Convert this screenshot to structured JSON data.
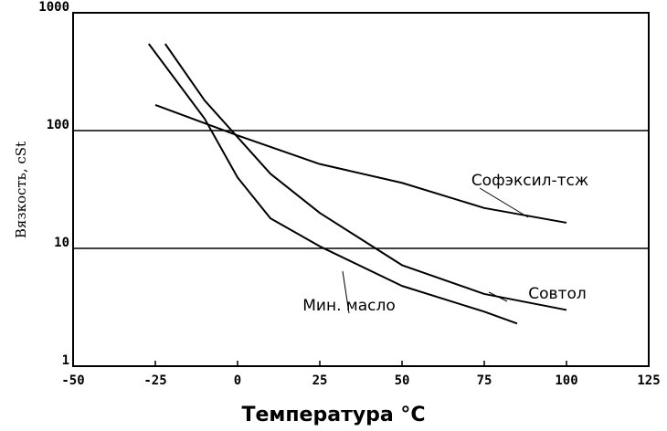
{
  "chart_data": {
    "type": "line",
    "xlabel": "Температура °C",
    "ylabel": "Вязкость, cSt",
    "log_y": true,
    "grid": true,
    "color": "#000000",
    "xlim": [
      -50,
      125
    ],
    "xticks": [
      -50,
      -25,
      0,
      25,
      50,
      75,
      100,
      125
    ],
    "ylim": [
      1,
      1000
    ],
    "yticks": [
      1,
      10,
      100,
      1000
    ],
    "series": [
      {
        "name": "Софэксил-тсж",
        "x": [
          -25,
          0,
          25,
          50,
          75,
          100
        ],
        "values": [
          165,
          91,
          52,
          36,
          22,
          16.5
        ]
      },
      {
        "name": "Совтол",
        "x": [
          -22,
          -10,
          0,
          10,
          25,
          50,
          75,
          100
        ],
        "values": [
          545,
          180,
          88,
          43,
          20,
          7.2,
          4.1,
          3.0
        ]
      },
      {
        "name": "Мин. масло",
        "x": [
          -27,
          -10,
          0,
          10,
          25,
          50,
          75,
          85
        ],
        "values": [
          545,
          126,
          40,
          18,
          10.4,
          4.8,
          2.9,
          2.3
        ]
      }
    ]
  }
}
